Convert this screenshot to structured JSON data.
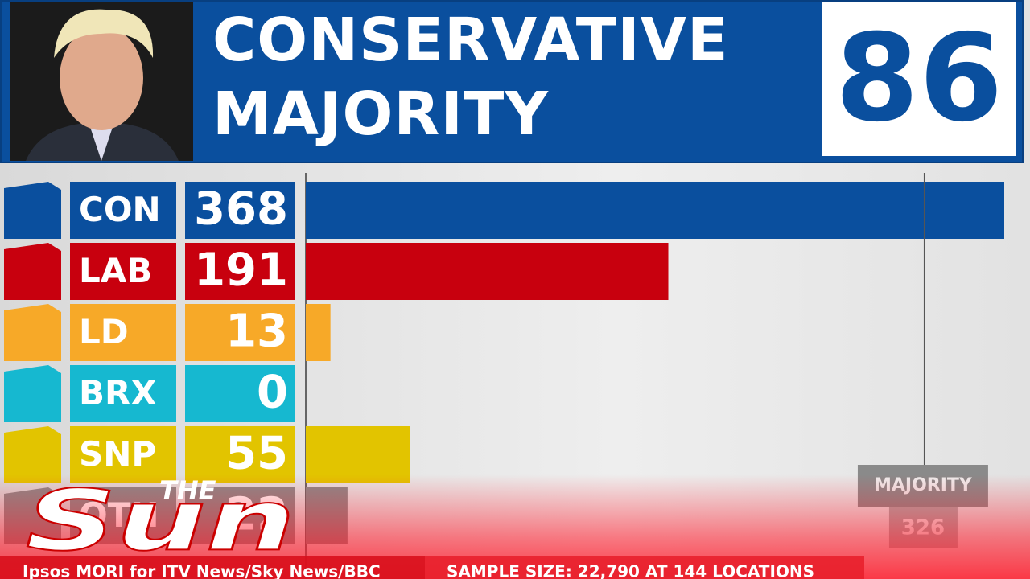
{
  "chart_data": {
    "type": "bar",
    "orientation": "horizontal",
    "title": "CONSERVATIVE MAJORITY",
    "headline_value": 86,
    "categories": [
      "CON",
      "LAB",
      "LD",
      "BRX",
      "SNP",
      "OTH"
    ],
    "values": [
      368,
      191,
      13,
      0,
      55,
      22
    ],
    "colors": [
      "#0a4f9e",
      "#c8000e",
      "#f7a928",
      "#16b8d0",
      "#e2c400",
      "#8a8a8a"
    ],
    "xlim": [
      0,
      368
    ],
    "reference_line": {
      "label": "MAJORITY",
      "value": 326
    }
  },
  "logo": {
    "top": "THE",
    "main": "Sun"
  },
  "footer": {
    "source": "Ipsos MORI for ITV News/Sky News/BBC",
    "sample": "SAMPLE SIZE: 22,790 AT 144 LOCATIONS"
  }
}
